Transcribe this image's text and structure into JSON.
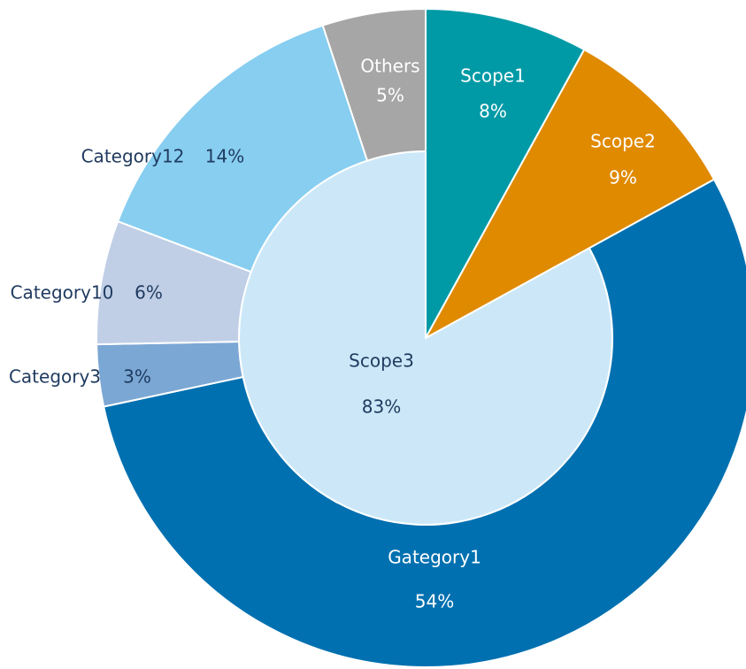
{
  "chart_data": {
    "type": "sunburst",
    "series": [
      {
        "name": "Scope1",
        "value": 8,
        "value_label": "8%",
        "color": "#009aa6"
      },
      {
        "name": "Scope2",
        "value": 9,
        "value_label": "9%",
        "color": "#e08a00"
      },
      {
        "name": "Scope3",
        "value": 83,
        "value_label": "83%",
        "color": "#cce8f8",
        "children": [
          {
            "name": "Gategory1",
            "value": 54,
            "value_label": "54%",
            "color": "#0070b0"
          },
          {
            "name": "Category3",
            "value": 3,
            "value_label": "3%",
            "color": "#7ba7d4"
          },
          {
            "name": "Category10",
            "value": 6,
            "value_label": "6%",
            "color": "#c0cfe6"
          },
          {
            "name": "Category12",
            "value": 14,
            "value_label": "14%",
            "color": "#87cef0"
          },
          {
            "name": "Others",
            "value": 5,
            "value_label": "5%",
            "color": "#a6a6a6"
          }
        ]
      }
    ]
  }
}
